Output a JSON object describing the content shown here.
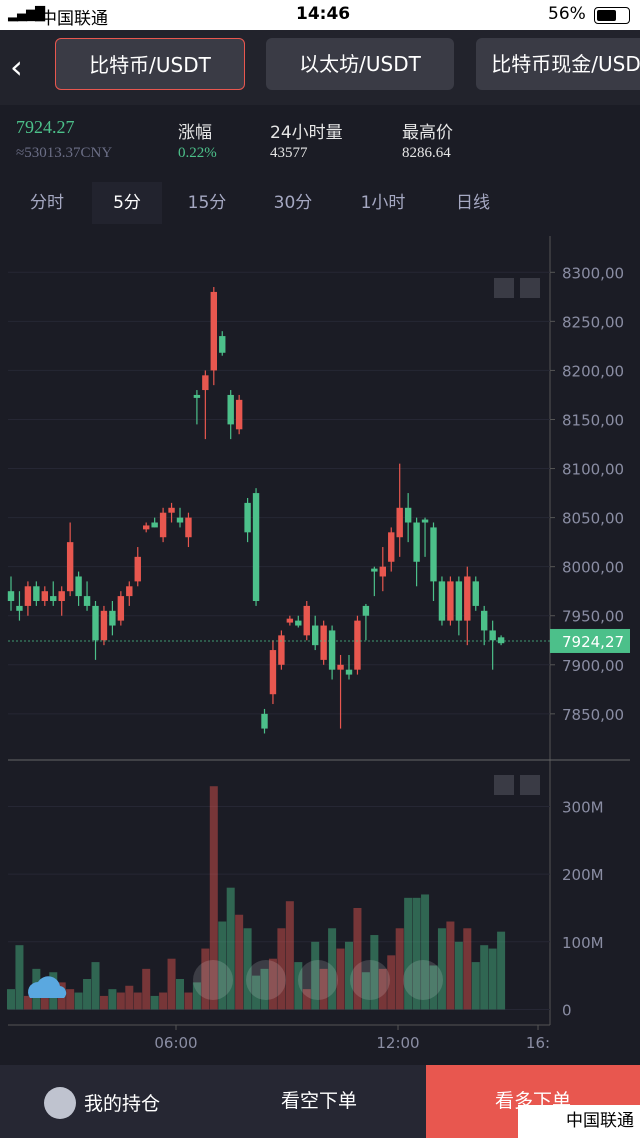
{
  "status_bar": {
    "carrier": "中国联通",
    "time": "14:46",
    "battery": "56%"
  },
  "tabs": [
    "比特币/USDT",
    "以太坊/USDT",
    "比特币现金/USD"
  ],
  "stats": {
    "price": "7924.27",
    "cny": "≈53013.37CNY",
    "items": [
      {
        "label": "涨幅",
        "value": "0.22%"
      },
      {
        "label": "24小时量",
        "value": "43577"
      },
      {
        "label": "最高价",
        "value": "8286.64"
      }
    ]
  },
  "intervals": [
    "分时",
    "5分",
    "15分",
    "30分",
    "1小时",
    "日线"
  ],
  "price_chart": {
    "type": "candlestick",
    "ylim": [
      7805,
      8337
    ],
    "yticks": [
      {
        "value": 8300,
        "label": "8300,00"
      },
      {
        "value": 8250,
        "label": "8250,00"
      },
      {
        "value": 8200,
        "label": "8200,00"
      },
      {
        "value": 8150,
        "label": "8150,00"
      },
      {
        "value": 8100,
        "label": "8100,00"
      },
      {
        "value": 8050,
        "label": "8050,00"
      },
      {
        "value": 8000,
        "label": "8000,00"
      },
      {
        "value": 7950,
        "label": "7950,00"
      },
      {
        "value": 7900,
        "label": "7900,00"
      },
      {
        "value": 7850,
        "label": "7850,00"
      }
    ],
    "last_price": {
      "value": 7924.27,
      "label": "7924,27"
    },
    "up_color": "#e8574f",
    "down_color": "#4cc08a",
    "candles": [
      {
        "open": 7975,
        "high": 7990,
        "low": 7955,
        "close": 7965
      },
      {
        "open": 7960,
        "high": 7975,
        "low": 7945,
        "close": 7955
      },
      {
        "open": 7960,
        "high": 7985,
        "low": 7950,
        "close": 7980
      },
      {
        "open": 7980,
        "high": 7985,
        "low": 7960,
        "close": 7965
      },
      {
        "open": 7965,
        "high": 7980,
        "low": 7960,
        "close": 7975
      },
      {
        "open": 7970,
        "high": 7985,
        "low": 7960,
        "close": 7965
      },
      {
        "open": 7965,
        "high": 7980,
        "low": 7950,
        "close": 7975
      },
      {
        "open": 7975,
        "high": 8045,
        "low": 7970,
        "close": 8025
      },
      {
        "open": 7990,
        "high": 7995,
        "low": 7960,
        "close": 7970
      },
      {
        "open": 7970,
        "high": 7985,
        "low": 7955,
        "close": 7960
      },
      {
        "open": 7960,
        "high": 7965,
        "low": 7905,
        "close": 7925
      },
      {
        "open": 7925,
        "high": 7960,
        "low": 7920,
        "close": 7955
      },
      {
        "open": 7955,
        "high": 7965,
        "low": 7930,
        "close": 7940
      },
      {
        "open": 7945,
        "high": 7975,
        "low": 7940,
        "close": 7970
      },
      {
        "open": 7970,
        "high": 7985,
        "low": 7960,
        "close": 7980
      },
      {
        "open": 7985,
        "high": 8020,
        "low": 7980,
        "close": 8010
      },
      {
        "open": 8038,
        "high": 8045,
        "low": 8035,
        "close": 8042
      },
      {
        "open": 8045,
        "high": 8050,
        "low": 8040,
        "close": 8040
      },
      {
        "open": 8030,
        "high": 8060,
        "low": 8025,
        "close": 8055
      },
      {
        "open": 8055,
        "high": 8065,
        "low": 8045,
        "close": 8060
      },
      {
        "open": 8050,
        "high": 8060,
        "low": 8040,
        "close": 8045
      },
      {
        "open": 8030,
        "high": 8055,
        "low": 8020,
        "close": 8050
      },
      {
        "open": 8175,
        "high": 8180,
        "low": 8145,
        "close": 8172
      },
      {
        "open": 8180,
        "high": 8200,
        "low": 8130,
        "close": 8195
      },
      {
        "open": 8200,
        "high": 8285,
        "low": 8185,
        "close": 8280
      },
      {
        "open": 8235,
        "high": 8240,
        "low": 8215,
        "close": 8218
      },
      {
        "open": 8175,
        "high": 8180,
        "low": 8130,
        "close": 8145
      },
      {
        "open": 8140,
        "high": 8175,
        "low": 8135,
        "close": 8170
      },
      {
        "open": 8065,
        "high": 8070,
        "low": 8025,
        "close": 8035
      },
      {
        "open": 8075,
        "high": 8080,
        "low": 7960,
        "close": 7965
      },
      {
        "open": 7850,
        "high": 7855,
        "low": 7830,
        "close": 7835
      },
      {
        "open": 7870,
        "high": 7925,
        "low": 7860,
        "close": 7915
      },
      {
        "open": 7900,
        "high": 7935,
        "low": 7895,
        "close": 7930
      },
      {
        "open": 7943,
        "high": 7950,
        "low": 7940,
        "close": 7947
      },
      {
        "open": 7945,
        "high": 7950,
        "low": 7938,
        "close": 7940
      },
      {
        "open": 7930,
        "high": 7965,
        "low": 7925,
        "close": 7960
      },
      {
        "open": 7940,
        "high": 7950,
        "low": 7915,
        "close": 7920
      },
      {
        "open": 7905,
        "high": 7945,
        "low": 7900,
        "close": 7940
      },
      {
        "open": 7935,
        "high": 7940,
        "low": 7885,
        "close": 7895
      },
      {
        "open": 7895,
        "high": 7910,
        "low": 7835,
        "close": 7900
      },
      {
        "open": 7895,
        "high": 7910,
        "low": 7885,
        "close": 7890
      },
      {
        "open": 7895,
        "high": 7950,
        "low": 7890,
        "close": 7945
      },
      {
        "open": 7960,
        "high": 7962,
        "low": 7925,
        "close": 7950
      },
      {
        "open": 7998,
        "high": 8000,
        "low": 7970,
        "close": 7995
      },
      {
        "open": 7990,
        "high": 8020,
        "low": 7975,
        "close": 8000
      },
      {
        "open": 8005,
        "high": 8040,
        "low": 7995,
        "close": 8035
      },
      {
        "open": 8030,
        "high": 8105,
        "low": 8010,
        "close": 8060
      },
      {
        "open": 8060,
        "high": 8075,
        "low": 8025,
        "close": 8045
      },
      {
        "open": 8045,
        "high": 8050,
        "low": 7980,
        "close": 8005
      },
      {
        "open": 8048,
        "high": 8050,
        "low": 8010,
        "close": 8045
      },
      {
        "open": 8040,
        "high": 8045,
        "low": 7965,
        "close": 7985
      },
      {
        "open": 7985,
        "high": 7990,
        "low": 7940,
        "close": 7945
      },
      {
        "open": 7945,
        "high": 7990,
        "low": 7940,
        "close": 7985
      },
      {
        "open": 7985,
        "high": 7990,
        "low": 7930,
        "close": 7945
      },
      {
        "open": 7945,
        "high": 8000,
        "low": 7920,
        "close": 7990
      },
      {
        "open": 7985,
        "high": 7990,
        "low": 7955,
        "close": 7960
      },
      {
        "open": 7955,
        "high": 7960,
        "low": 7920,
        "close": 7935
      },
      {
        "open": 7935,
        "high": 7945,
        "low": 7895,
        "close": 7925
      },
      {
        "open": 7928,
        "high": 7930,
        "low": 7920,
        "close": 7922
      }
    ]
  },
  "volume_chart": {
    "type": "bar",
    "ylim": [
      -23,
      354
    ],
    "yticks": [
      0,
      {
        "value": 100,
        "label": "100M"
      },
      {
        "value": 200,
        "label": "200M"
      },
      {
        "value": 300,
        "label": "300M"
      }
    ],
    "values": [
      30,
      95,
      20,
      60,
      35,
      55,
      40,
      30,
      25,
      45,
      70,
      20,
      30,
      25,
      35,
      25,
      60,
      20,
      25,
      75,
      45,
      25,
      40,
      90,
      330,
      130,
      180,
      140,
      120,
      50,
      60,
      75,
      120,
      160,
      70,
      30,
      100,
      60,
      120,
      90,
      100,
      150,
      55,
      110,
      60,
      80,
      120,
      165,
      165,
      170,
      65,
      120,
      130,
      100,
      120,
      70,
      95,
      90,
      115
    ]
  },
  "xticks": [
    "06:00",
    "12:00",
    "16:"
  ],
  "bottom_bar": [
    "我的持仓",
    "看空下单",
    "看多下单"
  ],
  "overlay_carrier": "中国联通"
}
